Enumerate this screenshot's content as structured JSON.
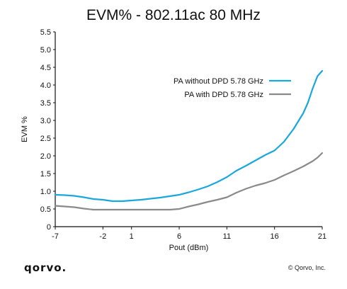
{
  "chart_data": {
    "type": "line",
    "title": "EVM% - 802.11ac 80 MHz",
    "xlabel": "Pout (dBm)",
    "ylabel": "EVM %",
    "xlim": [
      -7,
      21
    ],
    "ylim": [
      0,
      5.5
    ],
    "xticks": [
      "-7",
      "-2",
      "1",
      "6",
      "11",
      "16",
      "21"
    ],
    "yticks": [
      "0",
      "0.5",
      "1.0",
      "1.5",
      "2.0",
      "2.5",
      "3.0",
      "3.5",
      "4.0",
      "4.5",
      "5.0",
      "5.5"
    ],
    "grid": false,
    "legend_position": "top-right",
    "series": [
      {
        "name": "PA without DPD 5.78 GHz",
        "color": "#1aa7dc",
        "x": [
          -7,
          -6,
          -5,
          -4,
          -3,
          -2,
          -1,
          0,
          1,
          2,
          3,
          4,
          5,
          6,
          7,
          8,
          9,
          10,
          11,
          12,
          13,
          14,
          15,
          16,
          17,
          18,
          19,
          19.5,
          20,
          20.5,
          21
        ],
        "y": [
          0.9,
          0.89,
          0.87,
          0.83,
          0.78,
          0.76,
          0.72,
          0.72,
          0.74,
          0.76,
          0.79,
          0.82,
          0.86,
          0.9,
          0.97,
          1.05,
          1.14,
          1.26,
          1.4,
          1.58,
          1.72,
          1.87,
          2.02,
          2.15,
          2.4,
          2.76,
          3.2,
          3.5,
          3.9,
          4.25,
          4.4
        ]
      },
      {
        "name": "PA with DPD 5.78 GHz",
        "color": "#8a8a8a",
        "x": [
          -7,
          -6,
          -5,
          -4,
          -3,
          -2,
          -1,
          0,
          1,
          2,
          3,
          4,
          5,
          6,
          7,
          8,
          9,
          10,
          11,
          12,
          13,
          14,
          15,
          16,
          17,
          18,
          19,
          20,
          20.5,
          21
        ],
        "y": [
          0.59,
          0.57,
          0.55,
          0.51,
          0.48,
          0.48,
          0.48,
          0.48,
          0.48,
          0.48,
          0.48,
          0.48,
          0.48,
          0.5,
          0.57,
          0.63,
          0.7,
          0.76,
          0.83,
          0.96,
          1.07,
          1.16,
          1.23,
          1.32,
          1.45,
          1.57,
          1.7,
          1.85,
          1.95,
          2.08
        ]
      }
    ]
  },
  "footer": {
    "logo_text": "qorvo.",
    "copyright": "© Qorvo, Inc."
  }
}
